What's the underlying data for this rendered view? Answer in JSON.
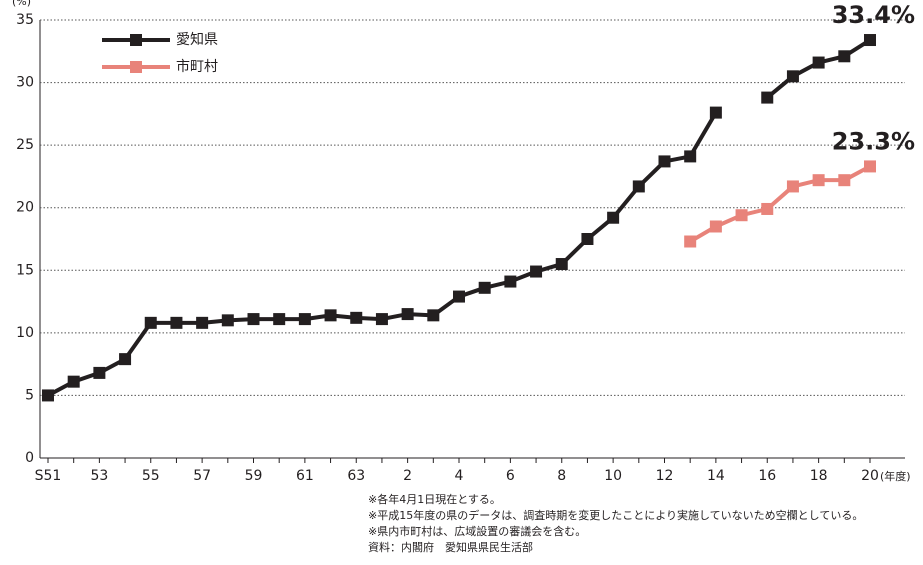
{
  "chart_data": {
    "type": "line",
    "y_unit": "(%)",
    "x_unit": "(年度)",
    "categories": [
      "S51",
      null,
      "53",
      null,
      "55",
      null,
      "57",
      null,
      "59",
      null,
      "61",
      null,
      "63",
      null,
      "2",
      null,
      "4",
      null,
      "6",
      null,
      "8",
      null,
      "10",
      null,
      "12",
      null,
      "14",
      null,
      "16",
      null,
      "18",
      null,
      "20"
    ],
    "series": [
      {
        "name": "愛知県",
        "color": "#231f20",
        "values": [
          5.0,
          6.1,
          6.8,
          7.9,
          10.8,
          10.8,
          10.8,
          11.0,
          11.1,
          11.1,
          11.1,
          11.4,
          11.2,
          11.1,
          11.5,
          11.4,
          12.9,
          13.6,
          14.1,
          14.9,
          15.5,
          17.5,
          19.2,
          21.7,
          23.7,
          24.1,
          27.6,
          null,
          28.8,
          30.5,
          31.6,
          32.1,
          33.4
        ],
        "value_labels": [
          null,
          null,
          null,
          null,
          null,
          null,
          null,
          null,
          null,
          null,
          null,
          null,
          null,
          null,
          null,
          null,
          null,
          null,
          null,
          null,
          null,
          null,
          null,
          null,
          null,
          null,
          null,
          null,
          null,
          null,
          null,
          null,
          "33.4%"
        ]
      },
      {
        "name": "市町村",
        "color": "#e8837a",
        "values": [
          null,
          null,
          null,
          null,
          null,
          null,
          null,
          null,
          null,
          null,
          null,
          null,
          null,
          null,
          null,
          null,
          null,
          null,
          null,
          null,
          null,
          null,
          null,
          null,
          null,
          17.3,
          18.5,
          19.4,
          19.9,
          21.7,
          22.2,
          22.2,
          23.3
        ],
        "value_labels": [
          null,
          null,
          null,
          null,
          null,
          null,
          null,
          null,
          null,
          null,
          null,
          null,
          null,
          null,
          null,
          null,
          null,
          null,
          null,
          null,
          null,
          null,
          null,
          null,
          null,
          null,
          null,
          null,
          null,
          null,
          null,
          null,
          "23.3%"
        ]
      }
    ],
    "ylim": [
      0,
      35
    ],
    "yticks": [
      0,
      5,
      10,
      15,
      20,
      25,
      30,
      35
    ],
    "grid": true,
    "legend": "top-left",
    "notes": [
      "※各年4月1日現在とする。",
      "※平成15年度の県のデータは、調査時期を変更したことにより実施していないため空欄としている。",
      "※県内市町村は、広域設置の審議会を含む。",
      "資料：内閣府　愛知県県民生活部"
    ]
  }
}
